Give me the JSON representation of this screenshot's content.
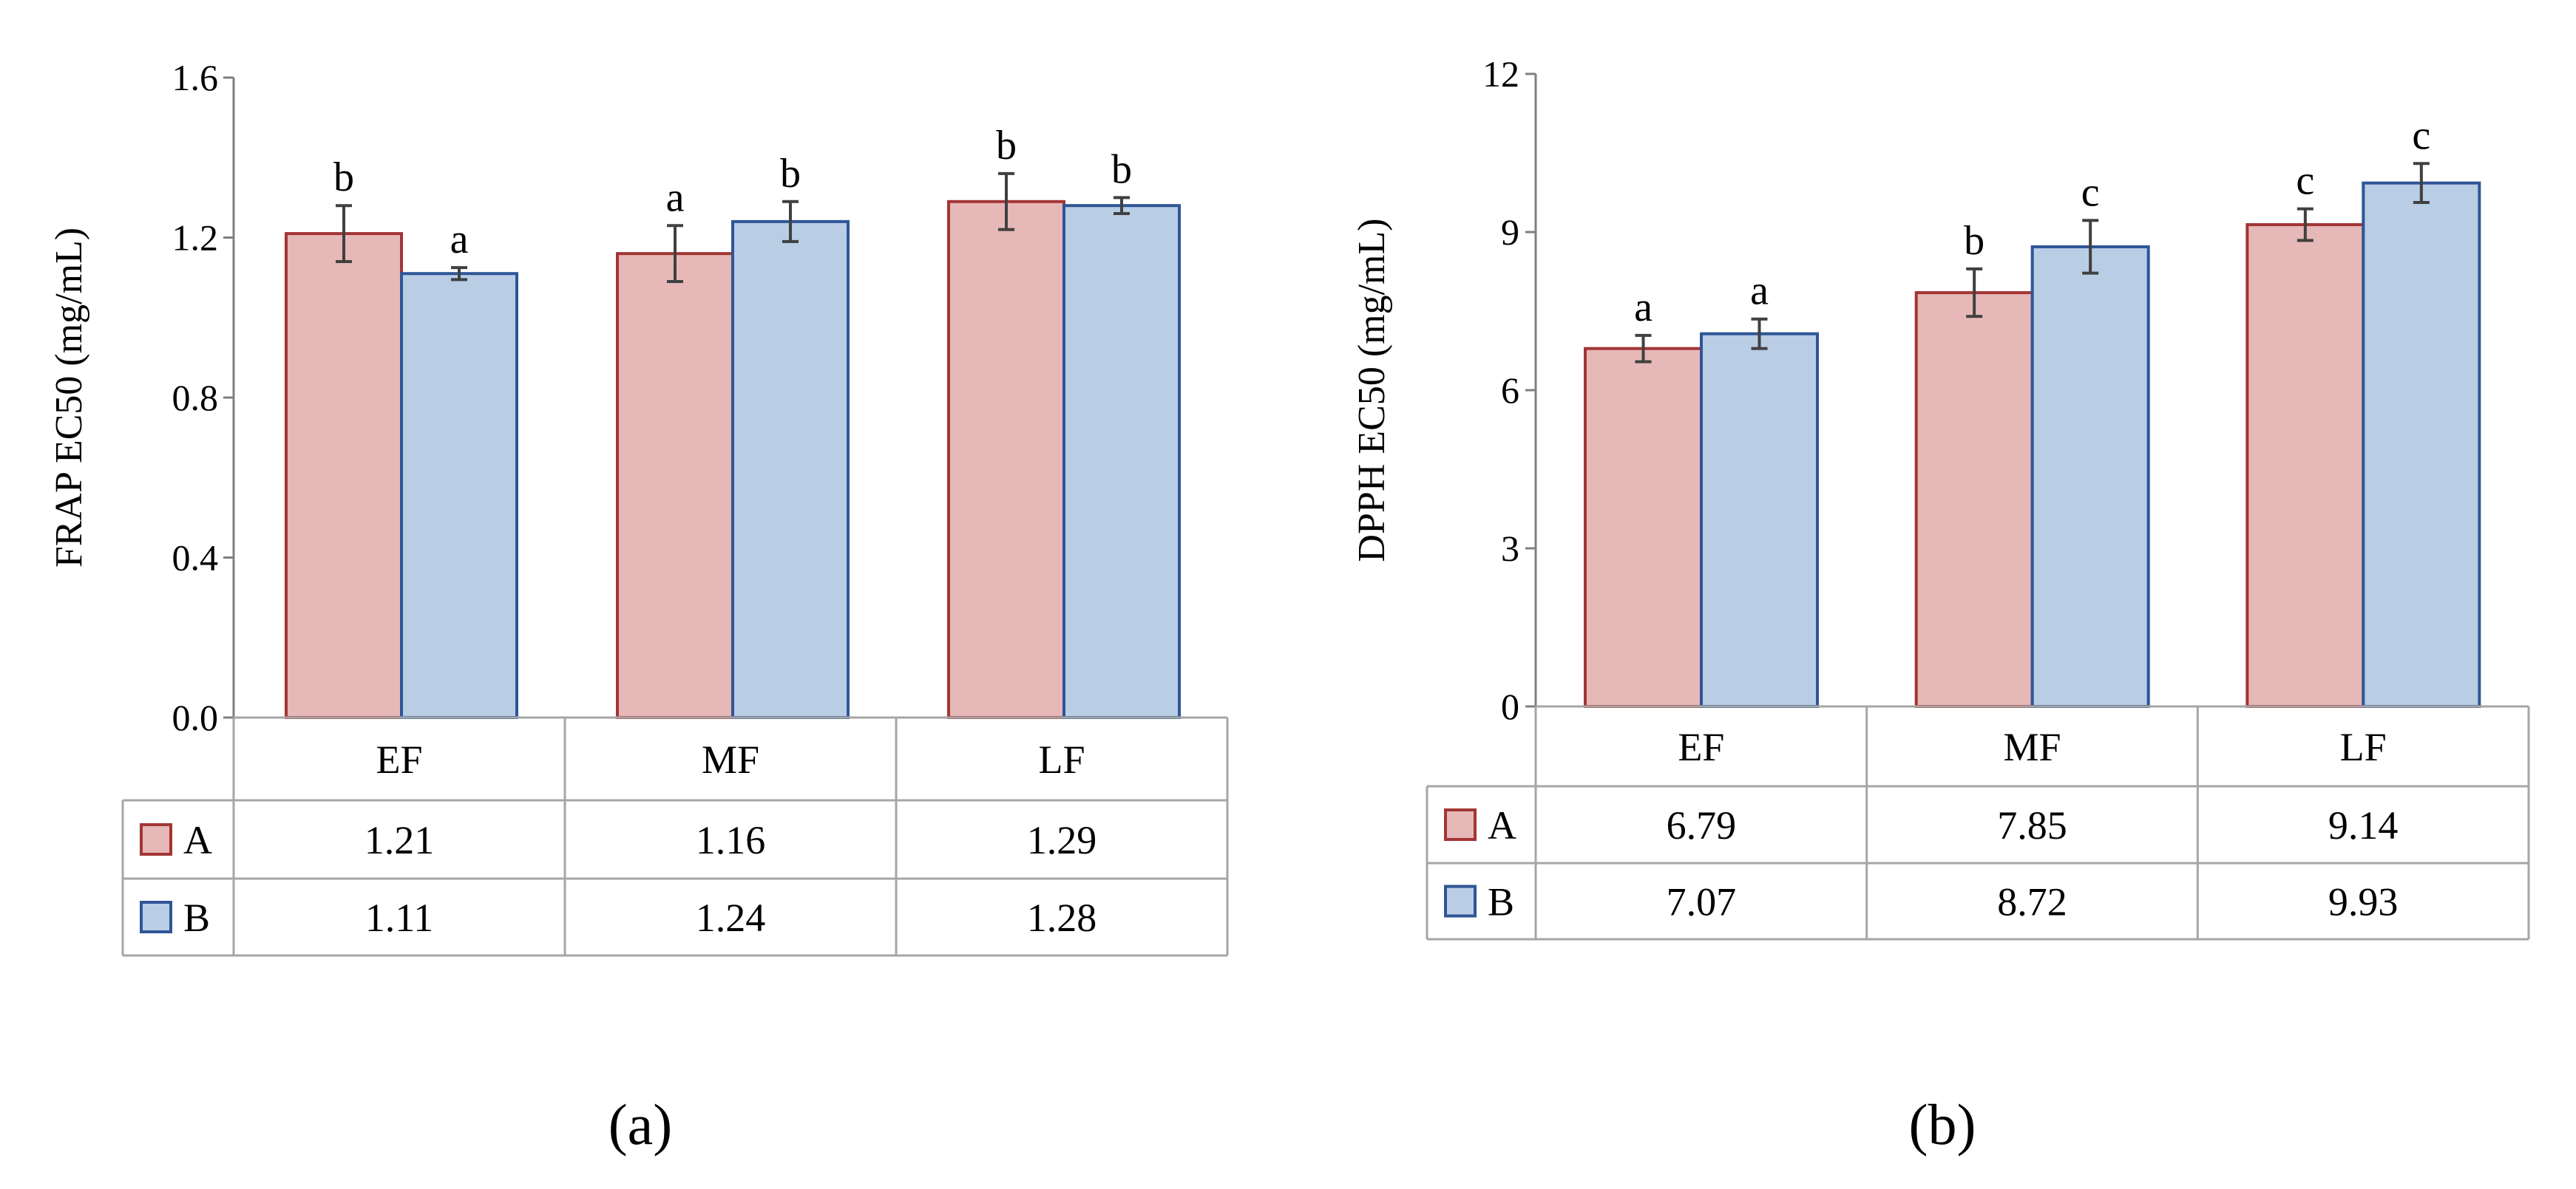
{
  "chart_data": [
    {
      "id": "a",
      "type": "bar",
      "panel_label": "(a)",
      "ylabel": "FRAP EC50 (mg/mL)",
      "ylim": [
        0,
        1.6
      ],
      "yticks": [
        "0.0",
        "0.4",
        "0.8",
        "1.2",
        "1.6"
      ],
      "categories": [
        "EF",
        "MF",
        "LF"
      ],
      "series": [
        {
          "name": "A",
          "color": "#e6b8b7",
          "stroke": "#a33535",
          "values": [
            1.21,
            1.16,
            1.29
          ],
          "labels": [
            "1.21",
            "1.16",
            "1.29"
          ],
          "errors": [
            0.07,
            0.07,
            0.07
          ],
          "sig": [
            "b",
            "a",
            "b"
          ]
        },
        {
          "name": "B",
          "color": "#b9cde5",
          "stroke": "#2f5597",
          "values": [
            1.11,
            1.24,
            1.28
          ],
          "labels": [
            "1.11",
            "1.24",
            "1.28"
          ],
          "errors": [
            0.015,
            0.05,
            0.02
          ],
          "sig": [
            "a",
            "b",
            "b"
          ]
        }
      ],
      "data_table": true
    },
    {
      "id": "b",
      "type": "bar",
      "panel_label": "(b)",
      "ylabel": "DPPH EC50 (mg/mL)",
      "ylim": [
        0,
        12
      ],
      "yticks": [
        "0",
        "3",
        "6",
        "9",
        "12"
      ],
      "categories": [
        "EF",
        "MF",
        "LF"
      ],
      "series": [
        {
          "name": "A",
          "color": "#e6b8b7",
          "stroke": "#a33535",
          "values": [
            6.79,
            7.85,
            9.14
          ],
          "labels": [
            "6.79",
            "7.85",
            "9.14"
          ],
          "errors": [
            0.25,
            0.45,
            0.3
          ],
          "sig": [
            "a",
            "b",
            "c"
          ]
        },
        {
          "name": "B",
          "color": "#b9cde5",
          "stroke": "#2f5597",
          "values": [
            7.07,
            8.72,
            9.93
          ],
          "labels": [
            "7.07",
            "8.72",
            "9.93"
          ],
          "errors": [
            0.28,
            0.5,
            0.37
          ],
          "sig": [
            "a",
            "c",
            "c"
          ]
        }
      ],
      "data_table": true
    }
  ]
}
